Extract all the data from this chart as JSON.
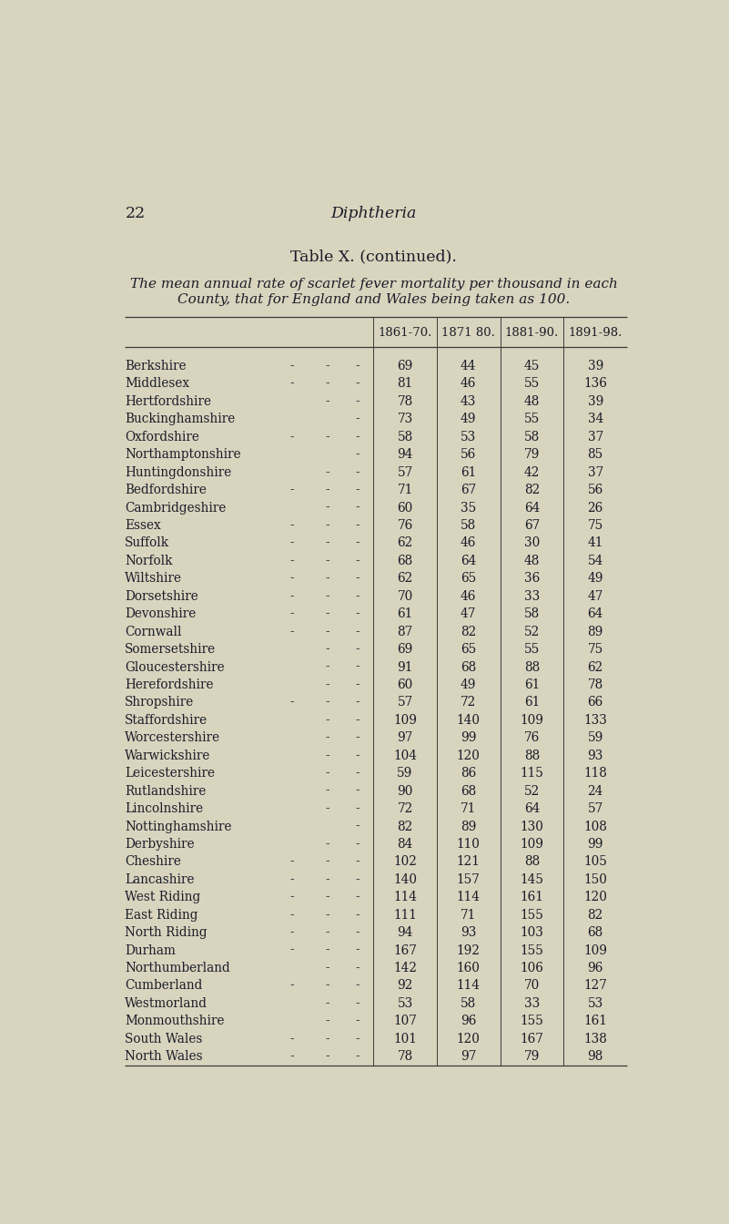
{
  "page_number": "22",
  "header_title": "Diphtheria",
  "table_title_smallcaps": "Table X.",
  "table_title_italic": " (continued).",
  "subtitle_line1": "The mean annual rate of scarlet fever mortality per thousand in each",
  "subtitle_line2": "County, that for England and Wales being taken as 100.",
  "col_headers": [
    "1861-70.",
    "1871 80.",
    "1881-90.",
    "1891-98."
  ],
  "col_headers_display": [
    "1861-70.",
    "1871 80.",
    "1881-90.",
    "1891-98."
  ],
  "rows": [
    [
      "Berkshire",
      69,
      44,
      45,
      39
    ],
    [
      "Middlesex",
      81,
      46,
      55,
      136
    ],
    [
      "Hertfordshire",
      78,
      43,
      48,
      39
    ],
    [
      "Buckinghamshire",
      73,
      49,
      55,
      34
    ],
    [
      "Oxfordshire",
      58,
      53,
      58,
      37
    ],
    [
      "Northamptonshire",
      94,
      56,
      79,
      85
    ],
    [
      "Huntingdonshire",
      57,
      61,
      42,
      37
    ],
    [
      "Bedfordshire",
      71,
      67,
      82,
      56
    ],
    [
      "Cambridgeshire",
      60,
      35,
      64,
      26
    ],
    [
      "Essex",
      76,
      58,
      67,
      75
    ],
    [
      "Suffolk",
      62,
      46,
      30,
      41
    ],
    [
      "Norfolk",
      68,
      64,
      48,
      54
    ],
    [
      "Wiltshire",
      62,
      65,
      36,
      49
    ],
    [
      "Dorsetshire",
      70,
      46,
      33,
      47
    ],
    [
      "Devonshire",
      61,
      47,
      58,
      64
    ],
    [
      "Cornwall",
      87,
      82,
      52,
      89
    ],
    [
      "Somersetshire",
      69,
      65,
      55,
      75
    ],
    [
      "Gloucestershire",
      91,
      68,
      88,
      62
    ],
    [
      "Herefordshire",
      60,
      49,
      61,
      78
    ],
    [
      "Shropshire",
      57,
      72,
      61,
      66
    ],
    [
      "Staffordshire",
      109,
      140,
      109,
      133
    ],
    [
      "Worcestershire",
      97,
      99,
      76,
      59
    ],
    [
      "Warwickshire",
      104,
      120,
      88,
      93
    ],
    [
      "Leicestershire",
      59,
      86,
      115,
      118
    ],
    [
      "Rutlandshire",
      90,
      68,
      52,
      24
    ],
    [
      "Lincolnshire",
      72,
      71,
      64,
      57
    ],
    [
      "Nottinghamshire",
      82,
      89,
      130,
      108
    ],
    [
      "Derbyshire",
      84,
      110,
      109,
      99
    ],
    [
      "Cheshire",
      102,
      121,
      88,
      105
    ],
    [
      "Lancashire",
      140,
      157,
      145,
      150
    ],
    [
      "West Riding",
      114,
      114,
      161,
      120
    ],
    [
      "East Riding",
      111,
      71,
      155,
      82
    ],
    [
      "North Riding",
      94,
      93,
      103,
      68
    ],
    [
      "Durham",
      167,
      192,
      155,
      109
    ],
    [
      "Northumberland",
      142,
      160,
      106,
      96
    ],
    [
      "Cumberland",
      92,
      114,
      70,
      127
    ],
    [
      "Westmorland",
      53,
      58,
      33,
      53
    ],
    [
      "Monmouthshire",
      107,
      96,
      155,
      161
    ],
    [
      "South Wales",
      101,
      120,
      167,
      138
    ],
    [
      "North Wales",
      78,
      97,
      79,
      98
    ]
  ],
  "bg_color": "#d8d4be",
  "text_color": "#1c1c28",
  "line_color": "#3a3a3a",
  "font_size_body": 9.8,
  "font_size_header_col": 9.5,
  "font_size_title": 12.5,
  "font_size_subtitle": 11.0,
  "font_size_page": 12.5
}
